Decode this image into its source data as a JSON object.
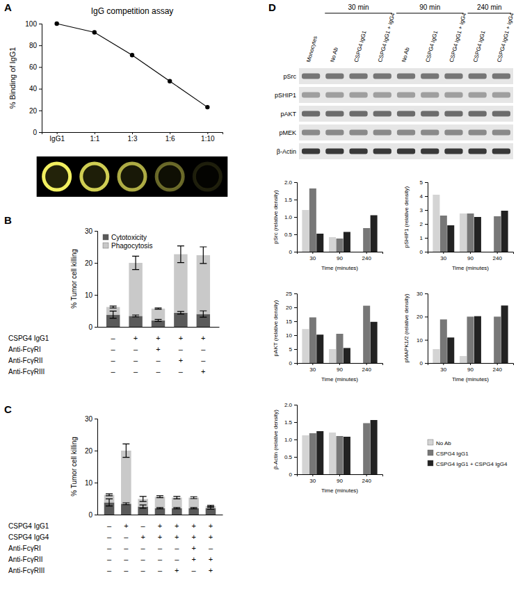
{
  "panel_labels": [
    "A",
    "B",
    "C",
    "D"
  ],
  "chart_data": [
    {
      "type": "line",
      "title": "IgG competition assay",
      "y_label": "% Binding of IgG1",
      "categories": [
        "IgG1",
        "1:1",
        "1:3",
        "1:6",
        "1:10"
      ],
      "values": [
        100,
        92,
        71,
        47,
        23
      ],
      "ylim": [
        0,
        100
      ],
      "yticks": [
        0,
        20,
        40,
        60,
        80,
        100
      ],
      "color": "#000000",
      "marker": "circle"
    },
    {
      "type": "bar",
      "stacked": true,
      "y_label": "% Tumor cell killing",
      "categories": [
        null,
        null,
        null,
        null,
        null
      ],
      "tick_labels": "y",
      "legend": "upper left",
      "ylim": [
        0,
        30
      ],
      "yticks": [
        0,
        10,
        20,
        30
      ],
      "series": [
        {
          "name": "Cytotoxicity",
          "color": "#5a5a5a",
          "values": [
            3.8,
            3.4,
            2.0,
            4.4,
            4.0
          ],
          "errors": [
            1.1,
            0.3,
            0.3,
            0.4,
            1.0
          ]
        },
        {
          "name": "Phagocytosis",
          "color": "#c9c9c9",
          "values": [
            2.4,
            16.6,
            3.7,
            18.3,
            18.4
          ],
          "errors": [
            0.3,
            2.1,
            0.2,
            2.6,
            2.6
          ]
        }
      ],
      "conditions": [
        {
          "label": "CSPG4 IgG1",
          "cells": [
            "–",
            "+",
            "+",
            "+",
            "+"
          ]
        },
        {
          "label": "Anti-FcγRI",
          "cells": [
            "–",
            "–",
            "+",
            "–",
            "–"
          ]
        },
        {
          "label": "Anti-FcγRII",
          "cells": [
            "–",
            "–",
            "–",
            "+",
            "–"
          ]
        },
        {
          "label": "Anti-FcγRIII",
          "cells": [
            "–",
            "–",
            "–",
            "–",
            "+"
          ]
        }
      ]
    },
    {
      "type": "bar",
      "stacked": true,
      "y_label": "% Tumor cell killing",
      "categories": [
        null,
        null,
        null,
        null,
        null,
        null,
        null
      ],
      "tick_labels": "y",
      "ylim": [
        0,
        30
      ],
      "yticks": [
        0,
        10,
        20,
        30
      ],
      "series": [
        {
          "name": "Cytotoxicity",
          "color": "#5a5a5a",
          "values": [
            3.8,
            3.4,
            2.5,
            2.0,
            2.0,
            2.0,
            2.0
          ],
          "errors": [
            1.1,
            0.3,
            0.5,
            0.2,
            0.2,
            0.2,
            0.3
          ]
        },
        {
          "name": "Phagocytosis",
          "color": "#c9c9c9",
          "values": [
            2.4,
            16.6,
            2.4,
            3.6,
            3.3,
            3.3,
            0.7
          ],
          "errors": [
            0.3,
            2.1,
            0.8,
            0.3,
            0.4,
            0.3,
            0.2
          ]
        }
      ],
      "conditions": [
        {
          "label": "CSPG4 IgG1",
          "cells": [
            "–",
            "+",
            "–",
            "+",
            "+",
            "+",
            "+"
          ]
        },
        {
          "label": "CSPG4 IgG4",
          "cells": [
            "–",
            "–",
            "+",
            "+",
            "+",
            "+",
            "+"
          ]
        },
        {
          "label": "Anti-FcγRI",
          "cells": [
            "–",
            "–",
            "–",
            "–",
            "–",
            "+",
            "–"
          ]
        },
        {
          "label": "Anti-FcγRII",
          "cells": [
            "–",
            "–",
            "–",
            "–",
            "–",
            "+",
            "+"
          ]
        },
        {
          "label": "Anti-FcγRIII",
          "cells": [
            "–",
            "–",
            "–",
            "–",
            "+",
            "–",
            "+"
          ]
        }
      ]
    },
    {
      "type": "bar",
      "y_label": "pSrc (relative density)",
      "x_label": "Time (minutes)",
      "categories": [
        "30",
        "90",
        "240"
      ],
      "ylim": [
        0,
        2
      ],
      "yticks": [
        0,
        0.5,
        {
          "value": 1,
          "label": "1.0"
        },
        1.5,
        {
          "value": 2,
          "label": "2.0"
        }
      ],
      "series": [
        {
          "name": "No Ab",
          "color": "#d4d4d4",
          "values": [
            1.2,
            0.42,
            null
          ]
        },
        {
          "name": "CSPG4 IgG1",
          "color": "#777777",
          "values": [
            1.82,
            0.38,
            0.68
          ]
        },
        {
          "name": "CSPG4 IgG1 + CSPG4 IgG4",
          "color": "#222222",
          "values": [
            0.52,
            0.57,
            1.05
          ]
        }
      ]
    },
    {
      "type": "bar",
      "y_label": "pSHIP1 (relative density)",
      "x_label": "Time (minutes)",
      "categories": [
        "30",
        "90",
        "240"
      ],
      "ylim": [
        0,
        5
      ],
      "yticks": [
        0,
        1,
        2,
        3,
        4,
        5
      ],
      "series": [
        {
          "name": "No Ab",
          "color": "#d4d4d4",
          "values": [
            4.1,
            2.75,
            null
          ]
        },
        {
          "name": "CSPG4 IgG1",
          "color": "#777777",
          "values": [
            2.6,
            2.75,
            2.55
          ]
        },
        {
          "name": "CSPG4 IgG1 + CSPG4 IgG4",
          "color": "#222222",
          "values": [
            1.9,
            2.5,
            2.95
          ]
        }
      ]
    },
    {
      "type": "bar",
      "y_label": "pAKT (relative density)",
      "x_label": "Time (minutes)",
      "categories": [
        "30",
        "90",
        "240"
      ],
      "ylim": [
        0,
        25
      ],
      "yticks": [
        0,
        5,
        10,
        15,
        20,
        25
      ],
      "series": [
        {
          "name": "No Ab",
          "color": "#d4d4d4",
          "values": [
            12.2,
            5.0,
            null
          ]
        },
        {
          "name": "CSPG4 IgG1",
          "color": "#777777",
          "values": [
            16.4,
            10.5,
            20.6
          ]
        },
        {
          "name": "CSPG4 IgG1 + CSPG4 IgG4",
          "color": "#222222",
          "values": [
            10.2,
            5.4,
            14.8
          ]
        }
      ]
    },
    {
      "type": "bar",
      "y_label": "pMAPK1/2 (relative density)",
      "x_label": "Time (minutes)",
      "categories": [
        "30",
        "90",
        "240"
      ],
      "ylim": [
        0,
        30
      ],
      "yticks": [
        0,
        10,
        20,
        30
      ],
      "series": [
        {
          "name": "No Ab",
          "color": "#d4d4d4",
          "values": [
            6.0,
            3.0,
            null
          ]
        },
        {
          "name": "CSPG4 IgG1",
          "color": "#777777",
          "values": [
            18.8,
            20.0,
            20.0
          ]
        },
        {
          "name": "CSPG4 IgG1 + CSPG4 IgG4",
          "color": "#222222",
          "values": [
            11.0,
            20.2,
            24.8
          ]
        }
      ]
    },
    {
      "type": "bar",
      "y_label": "β-Actin (relative density)",
      "x_label": "Time (minutes)",
      "categories": [
        "30",
        "90",
        "240"
      ],
      "ylim": [
        0,
        2
      ],
      "legend": "right",
      "yticks": [
        0,
        0.5,
        {
          "value": 1,
          "label": "1.0"
        },
        1.5,
        {
          "value": 2,
          "label": "2.0"
        }
      ],
      "series": [
        {
          "name": "No Ab",
          "color": "#d4d4d4",
          "values": [
            1.12,
            1.2,
            null
          ]
        },
        {
          "name": "CSPG4 IgG1",
          "color": "#777777",
          "values": [
            1.18,
            1.1,
            1.47
          ]
        },
        {
          "name": "CSPG4 IgG1 + CSPG4 IgG4",
          "color": "#222222",
          "values": [
            1.24,
            1.08,
            1.56
          ]
        }
      ]
    }
  ],
  "blot": {
    "lanes": [
      {
        "label": "Monocytes",
        "time": null
      },
      {
        "label": "No Ab",
        "time": "30 min"
      },
      {
        "label": "CSPG4 IgG1",
        "time": "30 min"
      },
      {
        "label": "CSPG4 IgG1 + IgG4",
        "time": "30 min"
      },
      {
        "label": "No Ab",
        "time": "90 min"
      },
      {
        "label": "CSPG4 IgG1",
        "time": "90 min"
      },
      {
        "label": "CSPG4 IgG1 + IgG4",
        "time": "90 min"
      },
      {
        "label": "CSPG4 IgG1",
        "time": "240 min"
      },
      {
        "label": "CSPG4 IgG1 + IgG4",
        "time": "240 min"
      }
    ],
    "rows": [
      "pSrc",
      "pSHIP1",
      "pAKT",
      "pMEK",
      "β-Actin"
    ]
  }
}
